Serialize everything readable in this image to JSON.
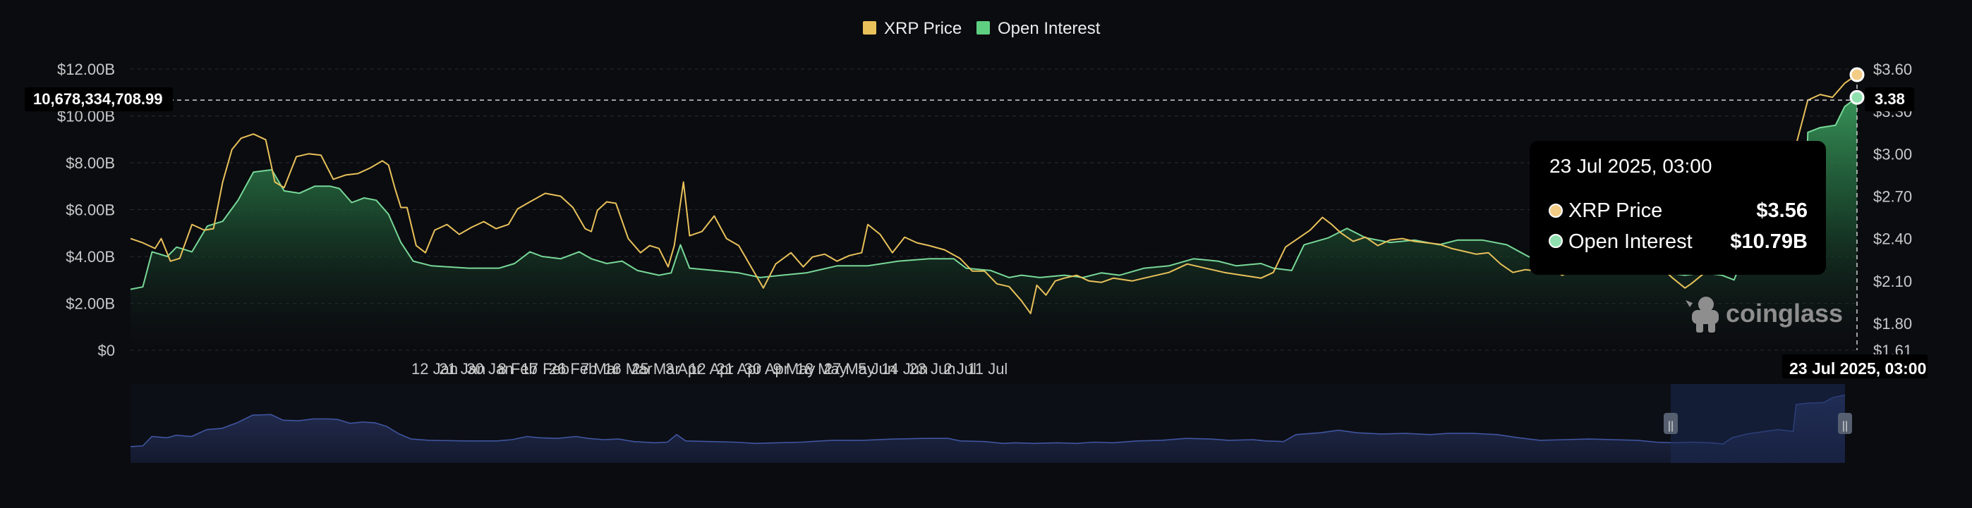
{
  "chart_data": {
    "type": "area",
    "legend": {
      "placement": "top-center",
      "items": [
        {
          "label": "XRP Price",
          "color": "#e8c15a"
        },
        {
          "label": "Open Interest",
          "color": "#5fcf82"
        }
      ]
    },
    "x_tick_labels": [
      "12 Jan",
      "21 Jan",
      "30 Jan",
      "8 Feb",
      "17 Feb",
      "26 Feb",
      "7 Mar",
      "16 Mar",
      "25 Mar",
      "3 Apr",
      "12 Apr",
      "21 Apr",
      "30 Apr",
      "9 May",
      "18 May",
      "27 May",
      "5 Jun",
      "14 Jun",
      "23 Jun",
      "2 Jul",
      "11 Jul"
    ],
    "x_cursor_label": "23 Jul 2025, 03:00",
    "left_axis": {
      "label": "",
      "ticks": [
        "$0",
        "$2.00B",
        "$4.00B",
        "$6.00B",
        "$8.00B",
        "$10.00B",
        "$12.00B"
      ],
      "range": [
        0,
        12
      ]
    },
    "right_axis": {
      "label": "",
      "ticks": [
        "$1.61",
        "$1.80",
        "$2.10",
        "$2.40",
        "$2.70",
        "$3.00",
        "$3.30",
        "$3.60"
      ],
      "range": [
        1.61,
        3.6
      ]
    },
    "crosshair": {
      "left_value": "10,678,334,708.99",
      "right_value": "3.38"
    },
    "tooltip": {
      "title": "23 Jul 2025, 03:00",
      "rows": [
        {
          "label": "XRP Price",
          "value": "$3.56",
          "color": "#f3cc86"
        },
        {
          "label": "Open Interest",
          "value": "$10.79B",
          "color": "#8fe0ae"
        }
      ]
    },
    "series": [
      {
        "name": "Open Interest",
        "unit": "B USD",
        "axis": "left",
        "color": "#5fcf82",
        "points": [
          [
            0,
            2.6
          ],
          [
            4,
            2.7
          ],
          [
            7,
            4.2
          ],
          [
            12,
            4.0
          ],
          [
            15,
            4.4
          ],
          [
            20,
            4.2
          ],
          [
            25,
            5.3
          ],
          [
            30,
            5.5
          ],
          [
            35,
            6.4
          ],
          [
            40,
            7.6
          ],
          [
            46,
            7.7
          ],
          [
            50,
            6.8
          ],
          [
            55,
            6.7
          ],
          [
            60,
            7.0
          ],
          [
            65,
            7.0
          ],
          [
            68,
            6.9
          ],
          [
            72,
            6.3
          ],
          [
            76,
            6.5
          ],
          [
            80,
            6.4
          ],
          [
            84,
            5.8
          ],
          [
            88,
            4.6
          ],
          [
            92,
            3.8
          ],
          [
            98,
            3.6
          ],
          [
            110,
            3.5
          ],
          [
            120,
            3.5
          ],
          [
            125,
            3.7
          ],
          [
            130,
            4.2
          ],
          [
            134,
            4.0
          ],
          [
            140,
            3.9
          ],
          [
            146,
            4.2
          ],
          [
            150,
            3.9
          ],
          [
            155,
            3.7
          ],
          [
            160,
            3.8
          ],
          [
            165,
            3.4
          ],
          [
            172,
            3.2
          ],
          [
            176,
            3.3
          ],
          [
            179,
            4.5
          ],
          [
            182,
            3.5
          ],
          [
            190,
            3.4
          ],
          [
            198,
            3.3
          ],
          [
            205,
            3.1
          ],
          [
            212,
            3.2
          ],
          [
            220,
            3.3
          ],
          [
            230,
            3.6
          ],
          [
            240,
            3.6
          ],
          [
            250,
            3.8
          ],
          [
            260,
            3.9
          ],
          [
            268,
            3.9
          ],
          [
            272,
            3.5
          ],
          [
            280,
            3.4
          ],
          [
            286,
            3.1
          ],
          [
            290,
            3.2
          ],
          [
            296,
            3.1
          ],
          [
            304,
            3.2
          ],
          [
            310,
            3.1
          ],
          [
            316,
            3.3
          ],
          [
            322,
            3.2
          ],
          [
            330,
            3.5
          ],
          [
            338,
            3.6
          ],
          [
            346,
            3.9
          ],
          [
            354,
            3.8
          ],
          [
            360,
            3.6
          ],
          [
            368,
            3.7
          ],
          [
            372,
            3.5
          ],
          [
            378,
            3.4
          ],
          [
            382,
            4.5
          ],
          [
            390,
            4.8
          ],
          [
            396,
            5.2
          ],
          [
            402,
            4.8
          ],
          [
            410,
            4.6
          ],
          [
            418,
            4.7
          ],
          [
            426,
            4.5
          ],
          [
            432,
            4.7
          ],
          [
            440,
            4.7
          ],
          [
            448,
            4.5
          ],
          [
            455,
            4.0
          ],
          [
            462,
            3.6
          ],
          [
            470,
            3.7
          ],
          [
            478,
            3.8
          ],
          [
            486,
            3.7
          ],
          [
            494,
            3.6
          ],
          [
            500,
            3.3
          ],
          [
            506,
            3.2
          ],
          [
            512,
            3.3
          ],
          [
            518,
            3.2
          ],
          [
            522,
            3.0
          ],
          [
            525,
            4.0
          ],
          [
            530,
            4.6
          ],
          [
            540,
            5.3
          ],
          [
            545,
            5.0
          ],
          [
            546,
            9.3
          ],
          [
            550,
            9.5
          ],
          [
            555,
            9.6
          ],
          [
            558,
            10.4
          ],
          [
            562,
            10.79
          ]
        ]
      },
      {
        "name": "XRP Price",
        "unit": "USD",
        "axis": "right",
        "color": "#e8c15a",
        "points": [
          [
            0,
            2.4
          ],
          [
            4,
            2.37
          ],
          [
            8,
            2.33
          ],
          [
            10,
            2.4
          ],
          [
            13,
            2.24
          ],
          [
            16,
            2.26
          ],
          [
            20,
            2.5
          ],
          [
            24,
            2.46
          ],
          [
            27,
            2.47
          ],
          [
            30,
            2.8
          ],
          [
            33,
            3.03
          ],
          [
            36,
            3.11
          ],
          [
            40,
            3.14
          ],
          [
            44,
            3.1
          ],
          [
            47,
            2.8
          ],
          [
            50,
            2.76
          ],
          [
            54,
            2.98
          ],
          [
            58,
            3.0
          ],
          [
            62,
            2.99
          ],
          [
            66,
            2.82
          ],
          [
            70,
            2.85
          ],
          [
            74,
            2.86
          ],
          [
            78,
            2.9
          ],
          [
            82,
            2.95
          ],
          [
            84,
            2.92
          ],
          [
            86,
            2.76
          ],
          [
            88,
            2.62
          ],
          [
            90,
            2.62
          ],
          [
            93,
            2.35
          ],
          [
            96,
            2.3
          ],
          [
            99,
            2.46
          ],
          [
            103,
            2.5
          ],
          [
            107,
            2.43
          ],
          [
            111,
            2.48
          ],
          [
            115,
            2.52
          ],
          [
            119,
            2.47
          ],
          [
            123,
            2.5
          ],
          [
            126,
            2.61
          ],
          [
            130,
            2.66
          ],
          [
            135,
            2.72
          ],
          [
            140,
            2.7
          ],
          [
            144,
            2.62
          ],
          [
            148,
            2.47
          ],
          [
            150,
            2.45
          ],
          [
            152,
            2.6
          ],
          [
            155,
            2.66
          ],
          [
            158,
            2.65
          ],
          [
            162,
            2.4
          ],
          [
            166,
            2.3
          ],
          [
            169,
            2.35
          ],
          [
            172,
            2.33
          ],
          [
            175,
            2.2
          ],
          [
            177,
            2.35
          ],
          [
            180,
            2.8
          ],
          [
            182,
            2.42
          ],
          [
            186,
            2.45
          ],
          [
            190,
            2.56
          ],
          [
            194,
            2.4
          ],
          [
            198,
            2.35
          ],
          [
            202,
            2.2
          ],
          [
            206,
            2.05
          ],
          [
            210,
            2.22
          ],
          [
            215,
            2.3
          ],
          [
            219,
            2.2
          ],
          [
            222,
            2.27
          ],
          [
            226,
            2.29
          ],
          [
            230,
            2.24
          ],
          [
            234,
            2.28
          ],
          [
            238,
            2.3
          ],
          [
            240,
            2.5
          ],
          [
            244,
            2.43
          ],
          [
            248,
            2.3
          ],
          [
            252,
            2.41
          ],
          [
            256,
            2.37
          ],
          [
            260,
            2.35
          ],
          [
            265,
            2.32
          ],
          [
            270,
            2.26
          ],
          [
            274,
            2.17
          ],
          [
            278,
            2.17
          ],
          [
            282,
            2.08
          ],
          [
            286,
            2.06
          ],
          [
            290,
            1.96
          ],
          [
            293,
            1.87
          ],
          [
            295,
            2.07
          ],
          [
            298,
            2.0
          ],
          [
            301,
            2.1
          ],
          [
            304,
            2.12
          ],
          [
            308,
            2.14
          ],
          [
            312,
            2.1
          ],
          [
            316,
            2.09
          ],
          [
            320,
            2.12
          ],
          [
            326,
            2.1
          ],
          [
            332,
            2.13
          ],
          [
            338,
            2.16
          ],
          [
            344,
            2.22
          ],
          [
            350,
            2.19
          ],
          [
            356,
            2.16
          ],
          [
            362,
            2.14
          ],
          [
            368,
            2.12
          ],
          [
            372,
            2.16
          ],
          [
            376,
            2.34
          ],
          [
            380,
            2.4
          ],
          [
            384,
            2.46
          ],
          [
            388,
            2.55
          ],
          [
            391,
            2.5
          ],
          [
            394,
            2.44
          ],
          [
            398,
            2.38
          ],
          [
            402,
            2.41
          ],
          [
            406,
            2.35
          ],
          [
            410,
            2.39
          ],
          [
            414,
            2.4
          ],
          [
            418,
            2.38
          ],
          [
            422,
            2.37
          ],
          [
            426,
            2.36
          ],
          [
            430,
            2.33
          ],
          [
            434,
            2.31
          ],
          [
            438,
            2.29
          ],
          [
            442,
            2.3
          ],
          [
            446,
            2.22
          ],
          [
            450,
            2.16
          ],
          [
            454,
            2.18
          ],
          [
            458,
            2.17
          ],
          [
            462,
            2.2
          ],
          [
            466,
            2.14
          ],
          [
            470,
            2.18
          ],
          [
            474,
            2.25
          ],
          [
            478,
            2.28
          ],
          [
            482,
            2.24
          ],
          [
            486,
            2.23
          ],
          [
            490,
            2.18
          ],
          [
            494,
            2.17
          ],
          [
            498,
            2.2
          ],
          [
            502,
            2.12
          ],
          [
            506,
            2.05
          ],
          [
            508,
            2.08
          ],
          [
            512,
            2.15
          ],
          [
            516,
            2.22
          ],
          [
            520,
            2.25
          ],
          [
            522,
            2.28
          ],
          [
            526,
            2.65
          ],
          [
            530,
            2.8
          ],
          [
            536,
            2.95
          ],
          [
            542,
            3.05
          ],
          [
            546,
            3.38
          ],
          [
            550,
            3.42
          ],
          [
            554,
            3.4
          ],
          [
            558,
            3.5
          ],
          [
            562,
            3.56
          ]
        ]
      }
    ]
  },
  "navigator": {
    "handle_glyph": "||"
  },
  "watermark": {
    "text": "coinglass"
  }
}
